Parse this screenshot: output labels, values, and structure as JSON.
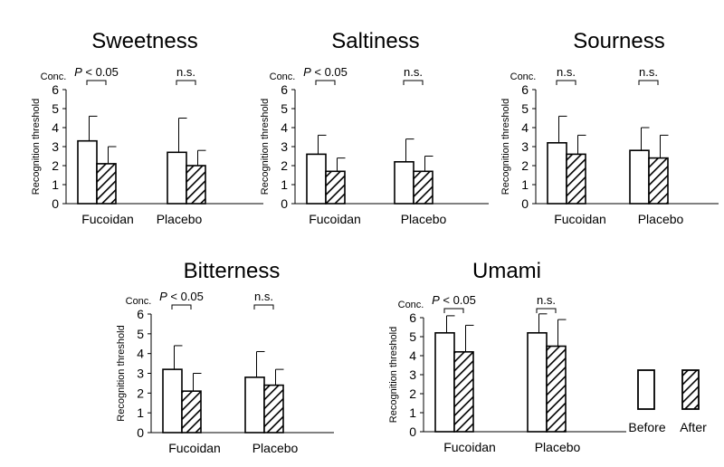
{
  "figure": {
    "ylabel": "Recognition threshold",
    "unit": "Conc.",
    "legend": {
      "before": "Before",
      "after": "After"
    },
    "colors": {
      "before_fill": "#ffffff",
      "stroke": "#000000",
      "hatch": "#000000"
    }
  },
  "chart_data": [
    {
      "type": "bar",
      "title": "Sweetness",
      "ylim": [
        0,
        6
      ],
      "yticks": [
        0,
        1,
        2,
        3,
        4,
        5,
        6
      ],
      "categories": [
        "Fucoidan",
        "Placebo"
      ],
      "series": [
        {
          "name": "Before",
          "values": [
            3.3,
            2.7
          ],
          "errors": [
            1.3,
            1.8
          ]
        },
        {
          "name": "After",
          "values": [
            2.1,
            2.0
          ],
          "errors": [
            0.9,
            0.8
          ]
        }
      ],
      "significance": [
        {
          "category": "Fucoidan",
          "label": "P < 0.05"
        },
        {
          "category": "Placebo",
          "label": "n.s."
        }
      ]
    },
    {
      "type": "bar",
      "title": "Saltiness",
      "ylim": [
        0,
        6
      ],
      "yticks": [
        0,
        1,
        2,
        3,
        4,
        5,
        6
      ],
      "categories": [
        "Fucoidan",
        "Placebo"
      ],
      "series": [
        {
          "name": "Before",
          "values": [
            2.6,
            2.2
          ],
          "errors": [
            1.0,
            1.2
          ]
        },
        {
          "name": "After",
          "values": [
            1.7,
            1.7
          ],
          "errors": [
            0.7,
            0.8
          ]
        }
      ],
      "significance": [
        {
          "category": "Fucoidan",
          "label": "P < 0.05"
        },
        {
          "category": "Placebo",
          "label": "n.s."
        }
      ]
    },
    {
      "type": "bar",
      "title": "Sourness",
      "ylim": [
        0,
        6
      ],
      "yticks": [
        0,
        1,
        2,
        3,
        4,
        5,
        6
      ],
      "categories": [
        "Fucoidan",
        "Placebo"
      ],
      "series": [
        {
          "name": "Before",
          "values": [
            3.2,
            2.8
          ],
          "errors": [
            1.4,
            1.2
          ]
        },
        {
          "name": "After",
          "values": [
            2.6,
            2.4
          ],
          "errors": [
            1.0,
            1.2
          ]
        }
      ],
      "significance": [
        {
          "category": "Fucoidan",
          "label": "n.s."
        },
        {
          "category": "Placebo",
          "label": "n.s."
        }
      ]
    },
    {
      "type": "bar",
      "title": "Bitterness",
      "ylim": [
        0,
        6
      ],
      "yticks": [
        0,
        1,
        2,
        3,
        4,
        5,
        6
      ],
      "categories": [
        "Fucoidan",
        "Placebo"
      ],
      "series": [
        {
          "name": "Before",
          "values": [
            3.2,
            2.8
          ],
          "errors": [
            1.2,
            1.3
          ]
        },
        {
          "name": "After",
          "values": [
            2.1,
            2.4
          ],
          "errors": [
            0.9,
            0.8
          ]
        }
      ],
      "significance": [
        {
          "category": "Fucoidan",
          "label": "P < 0.05"
        },
        {
          "category": "Placebo",
          "label": "n.s."
        }
      ]
    },
    {
      "type": "bar",
      "title": "Umami",
      "ylim": [
        0,
        6
      ],
      "yticks": [
        0,
        1,
        2,
        3,
        4,
        5,
        6
      ],
      "categories": [
        "Fucoidan",
        "Placebo"
      ],
      "series": [
        {
          "name": "Before",
          "values": [
            5.2,
            5.2
          ],
          "errors": [
            0.9,
            1.0
          ]
        },
        {
          "name": "After",
          "values": [
            4.2,
            4.5
          ],
          "errors": [
            1.4,
            1.4
          ]
        }
      ],
      "significance": [
        {
          "category": "Fucoidan",
          "label": "P < 0.05"
        },
        {
          "category": "Placebo",
          "label": "n.s."
        }
      ]
    }
  ]
}
